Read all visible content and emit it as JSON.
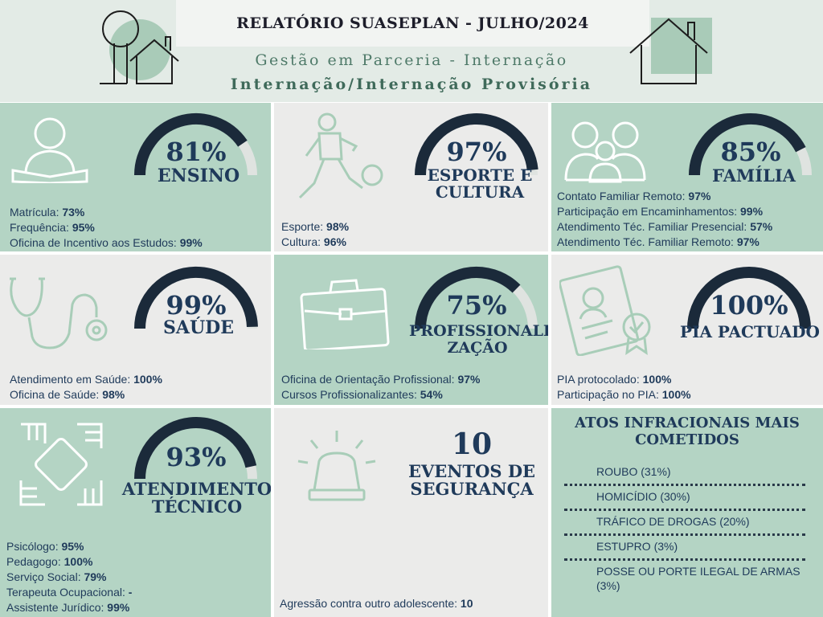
{
  "header": {
    "title": "RELATÓRIO SUASEPLAN - JULHO/2024",
    "subtitle1": "Gestão em Parceria - Internação",
    "subtitle2": "Internação/Internação Provisória"
  },
  "cards": {
    "ensino": {
      "percent_text": "81%",
      "percent": 81,
      "label": "Ensino",
      "items": [
        {
          "label": "Matrícula: ",
          "value": "73%"
        },
        {
          "label": "Frequência: ",
          "value": "95%"
        },
        {
          "label": "Oficina de Incentivo aos Estudos: ",
          "value": "99%"
        }
      ]
    },
    "esporte": {
      "percent_text": "97%",
      "percent": 97,
      "label1": "Esporte e",
      "label2": "Cultura",
      "items": [
        {
          "label": "Esporte: ",
          "value": "98%"
        },
        {
          "label": "Cultura: ",
          "value": "96%"
        }
      ]
    },
    "familia": {
      "percent_text": "85%",
      "percent": 85,
      "label": "Família",
      "items": [
        {
          "label": "Contato Familiar Remoto: ",
          "value": "97%"
        },
        {
          "label": "Participação em Encaminhamentos: ",
          "value": "99%"
        },
        {
          "label": "Atendimento Téc. Familiar Presencial: ",
          "value": "57%"
        },
        {
          "label": "Atendimento Téc. Familiar Remoto: ",
          "value": "97%"
        }
      ]
    },
    "saude": {
      "percent_text": "99%",
      "percent": 99,
      "label": "Saúde",
      "items": [
        {
          "label": "Atendimento em Saúde: ",
          "value": "100%"
        },
        {
          "label": "Oficina de Saúde: ",
          "value": "98%"
        }
      ]
    },
    "profissionalizacao": {
      "percent_text": "75%",
      "percent": 75,
      "label1": "Profissionali-",
      "label2": "zação",
      "items": [
        {
          "label": "Oficina de Orientação Profissional: ",
          "value": "97%"
        },
        {
          "label": "Cursos Profissionalizantes: ",
          "value": "54%"
        }
      ]
    },
    "pia": {
      "percent_text": "100%",
      "percent": 100,
      "label": "PIA Pactuado",
      "items": [
        {
          "label": "PIA protocolado: ",
          "value": "100%"
        },
        {
          "label": "Participação no PIA: ",
          "value": "100%"
        }
      ]
    },
    "atendimento": {
      "percent_text": "93%",
      "percent": 93,
      "label1": "Atendimento",
      "label2": "Técnico",
      "items": [
        {
          "label": "Psicólogo: ",
          "value": "95%"
        },
        {
          "label": "Pedagogo: ",
          "value": "100%"
        },
        {
          "label": "Serviço Social: ",
          "value": "79%"
        },
        {
          "label": "Terapeuta Ocupacional: ",
          "value": "-"
        },
        {
          "label": "Assistente Jurídico: ",
          "value": "99%"
        }
      ]
    },
    "seguranca": {
      "count": "10",
      "label1": "Eventos de",
      "label2": "Segurança",
      "items": [
        {
          "label": "Agressão contra outro adolescente: ",
          "value": "10"
        }
      ]
    }
  },
  "atos": {
    "title": "Atos infracionais mais cometidos",
    "items": [
      "ROUBO (31%)",
      "HOMICÍDIO (30%)",
      "TRÁFICO DE DROGAS  (20%)",
      "ESTUPRO (3%)",
      "POSSE OU PORTE ILEGAL DE ARMAS (3%)"
    ]
  },
  "colors": {
    "gauge_fill": "#1b2a3a",
    "gauge_track": "#dfe3e0",
    "green_panel": "#b4d4c4",
    "gray_panel": "#ebebea",
    "icon_light": "#a8cdb8"
  }
}
